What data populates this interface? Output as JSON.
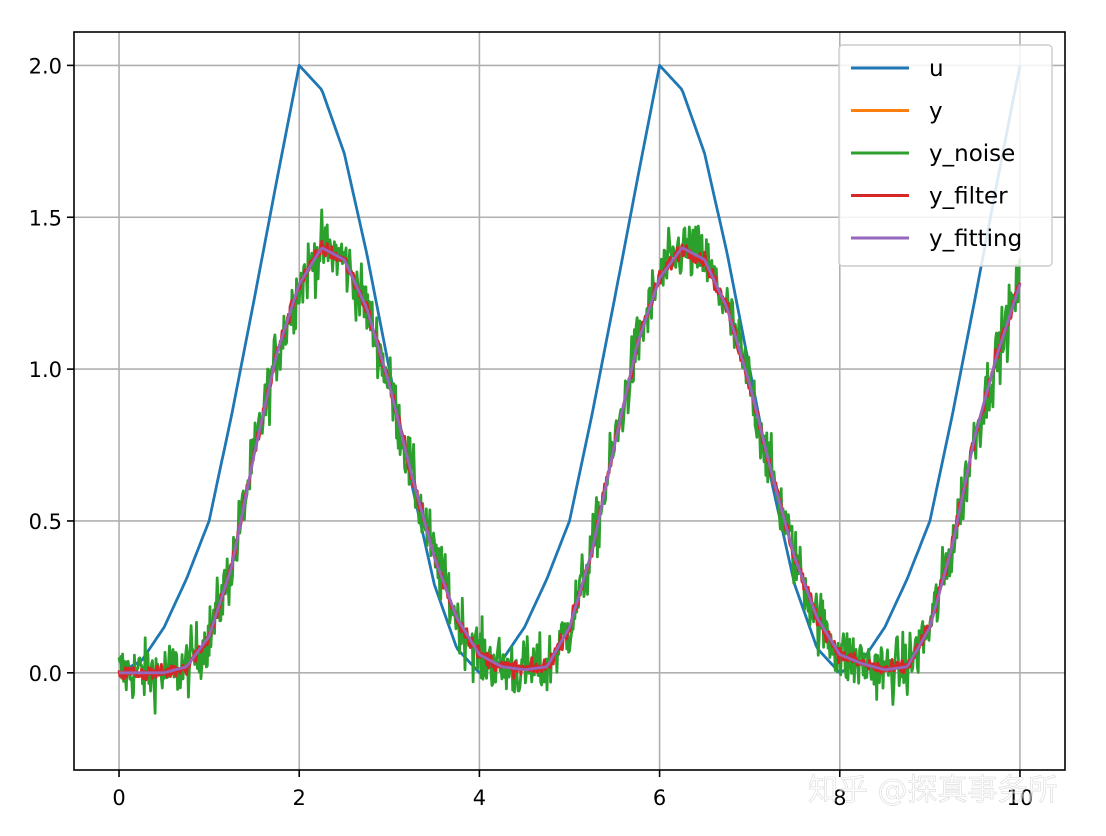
{
  "chart_data": {
    "type": "line",
    "title": "",
    "xlabel": "",
    "ylabel": "",
    "xlim": [
      -0.5,
      10.5
    ],
    "ylim": [
      -0.32,
      2.11
    ],
    "x_ticks": [
      0,
      2,
      4,
      6,
      8,
      10
    ],
    "x_tick_labels": [
      "0",
      "2",
      "4",
      "6",
      "8",
      "10"
    ],
    "y_ticks": [
      0.0,
      0.5,
      1.0,
      1.5,
      2.0
    ],
    "y_tick_labels": [
      "0.0",
      "0.5",
      "1.0",
      "1.5",
      "2.0"
    ],
    "grid": true,
    "legend_position": "top-right",
    "x": [
      0,
      0.25,
      0.5,
      0.75,
      1,
      1.25,
      1.5,
      1.75,
      2,
      2.25,
      2.5,
      2.75,
      3,
      3.25,
      3.5,
      3.75,
      4,
      4.25,
      4.5,
      4.75,
      5,
      5.25,
      5.5,
      5.75,
      6,
      6.25,
      6.5,
      6.75,
      7,
      7.25,
      7.5,
      7.75,
      8,
      8.25,
      8.5,
      8.75,
      9,
      9.25,
      9.5,
      9.75,
      10
    ],
    "series": [
      {
        "name": "u",
        "color": "#1f77b4",
        "values": [
          0.0,
          0.04,
          0.15,
          0.31,
          0.5,
          0.85,
          1.23,
          1.62,
          2.0,
          1.92,
          1.71,
          1.38,
          1.0,
          0.62,
          0.29,
          0.08,
          0.0,
          0.04,
          0.15,
          0.31,
          0.5,
          0.85,
          1.23,
          1.62,
          2.0,
          1.92,
          1.71,
          1.38,
          1.0,
          0.62,
          0.29,
          0.08,
          0.0,
          0.04,
          0.15,
          0.31,
          0.5,
          0.85,
          1.23,
          1.62,
          2.0
        ]
      },
      {
        "name": "y",
        "color": "#ff7f0e",
        "values": [
          0.0,
          0.0,
          0.0,
          0.02,
          0.12,
          0.35,
          0.72,
          1.05,
          1.28,
          1.4,
          1.36,
          1.2,
          0.95,
          0.65,
          0.38,
          0.18,
          0.06,
          0.02,
          0.01,
          0.02,
          0.15,
          0.4,
          0.75,
          1.08,
          1.3,
          1.4,
          1.36,
          1.2,
          0.95,
          0.65,
          0.38,
          0.18,
          0.06,
          0.03,
          0.01,
          0.02,
          0.15,
          0.42,
          0.78,
          1.05,
          1.28
        ]
      },
      {
        "name": "y_noise",
        "color": "#2ca02c",
        "values": [
          0.0,
          0.0,
          0.0,
          0.02,
          0.12,
          0.35,
          0.72,
          1.05,
          1.28,
          1.4,
          1.36,
          1.2,
          0.95,
          0.65,
          0.38,
          0.18,
          0.06,
          0.02,
          0.01,
          0.02,
          0.15,
          0.4,
          0.75,
          1.08,
          1.3,
          1.4,
          1.36,
          1.2,
          0.95,
          0.65,
          0.38,
          0.18,
          0.06,
          0.03,
          0.01,
          0.02,
          0.15,
          0.42,
          0.78,
          1.05,
          1.28
        ],
        "noise_amplitude": 0.1
      },
      {
        "name": "y_filter",
        "color": "#d62728",
        "values": [
          0.0,
          0.0,
          0.0,
          0.02,
          0.12,
          0.35,
          0.72,
          1.05,
          1.28,
          1.4,
          1.36,
          1.2,
          0.95,
          0.65,
          0.38,
          0.18,
          0.06,
          0.02,
          0.01,
          0.02,
          0.15,
          0.4,
          0.75,
          1.08,
          1.3,
          1.4,
          1.36,
          1.2,
          0.95,
          0.65,
          0.38,
          0.18,
          0.06,
          0.03,
          0.01,
          0.02,
          0.15,
          0.42,
          0.78,
          1.05,
          1.28
        ],
        "noise_amplitude": 0.025
      },
      {
        "name": "y_fitting",
        "color": "#9467bd",
        "values": [
          0.0,
          0.0,
          0.0,
          0.02,
          0.12,
          0.35,
          0.72,
          1.05,
          1.28,
          1.4,
          1.36,
          1.2,
          0.95,
          0.65,
          0.38,
          0.18,
          0.06,
          0.02,
          0.01,
          0.02,
          0.15,
          0.4,
          0.75,
          1.08,
          1.3,
          1.4,
          1.36,
          1.2,
          0.95,
          0.65,
          0.38,
          0.18,
          0.06,
          0.03,
          0.01,
          0.02,
          0.15,
          0.42,
          0.78,
          1.05,
          1.28
        ]
      }
    ],
    "legend_entries": [
      "u",
      "y",
      "y_noise",
      "y_filter",
      "y_fitting"
    ]
  },
  "watermark": "知乎 @探真事务所"
}
